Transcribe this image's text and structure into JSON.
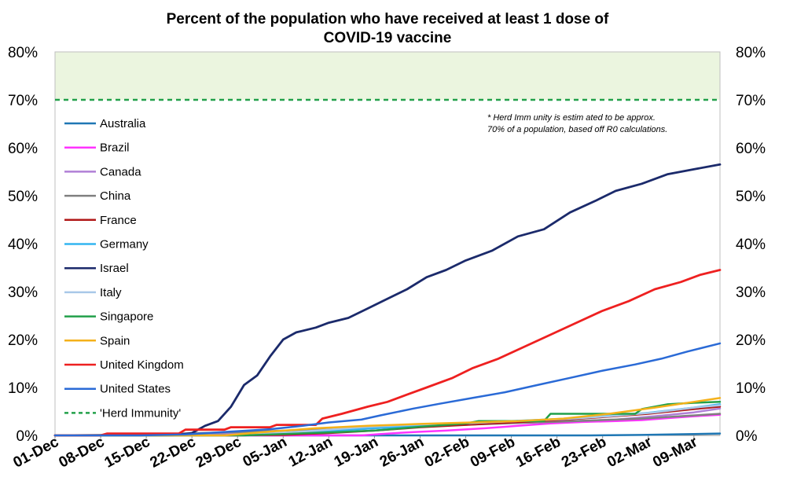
{
  "chart_data": {
    "type": "line",
    "title_lines": [
      "Percent of the population who have received at least 1 dose of",
      "COVID-19 vaccine"
    ],
    "xlabel": "",
    "ylabel": "",
    "ylim": [
      0,
      80
    ],
    "y_ticks": [
      "0%",
      "10%",
      "20%",
      "30%",
      "40%",
      "50%",
      "60%",
      "70%",
      "80%"
    ],
    "x_range": [
      "2020-12-01",
      "2021-03-13"
    ],
    "x_ticks": [
      {
        "date": "2020-12-01",
        "label": "01-Dec"
      },
      {
        "date": "2020-12-08",
        "label": "08-Dec"
      },
      {
        "date": "2020-12-15",
        "label": "15-Dec"
      },
      {
        "date": "2020-12-22",
        "label": "22-Dec"
      },
      {
        "date": "2020-12-29",
        "label": "29-Dec"
      },
      {
        "date": "2021-01-05",
        "label": "05-Jan"
      },
      {
        "date": "2021-01-12",
        "label": "12-Jan"
      },
      {
        "date": "2021-01-19",
        "label": "19-Jan"
      },
      {
        "date": "2021-01-26",
        "label": "26-Jan"
      },
      {
        "date": "2021-02-02",
        "label": "02-Feb"
      },
      {
        "date": "2021-02-09",
        "label": "09-Feb"
      },
      {
        "date": "2021-02-16",
        "label": "16-Feb"
      },
      {
        "date": "2021-02-23",
        "label": "23-Feb"
      },
      {
        "date": "2021-03-02",
        "label": "02-Mar"
      },
      {
        "date": "2021-03-09",
        "label": "09-Mar"
      }
    ],
    "herd_band_color": "#ebf5df",
    "legend_position": "left",
    "note_lines": [
      "* Herd Imm unity is estim ated to be approx.",
      "70% of a population, based off R0 calculations."
    ],
    "series": [
      {
        "name": "Australia",
        "color": "#1f77b4",
        "width": 2.5,
        "points": [
          [
            "2020-12-01",
            0
          ],
          [
            "2021-02-21",
            0
          ],
          [
            "2021-03-01",
            0.1
          ],
          [
            "2021-03-13",
            0.4
          ]
        ]
      },
      {
        "name": "Brazil",
        "color": "#ff33ff",
        "width": 2.5,
        "points": [
          [
            "2020-12-01",
            0
          ],
          [
            "2021-01-17",
            0
          ],
          [
            "2021-01-20",
            0.3
          ],
          [
            "2021-01-25",
            0.7
          ],
          [
            "2021-01-30",
            1.0
          ],
          [
            "2021-02-05",
            1.5
          ],
          [
            "2021-02-10",
            2.0
          ],
          [
            "2021-02-15",
            2.5
          ],
          [
            "2021-02-20",
            2.8
          ],
          [
            "2021-02-25",
            3.0
          ],
          [
            "2021-03-01",
            3.2
          ],
          [
            "2021-03-05",
            3.6
          ],
          [
            "2021-03-09",
            4.0
          ],
          [
            "2021-03-13",
            4.3
          ]
        ]
      },
      {
        "name": "Canada",
        "color": "#b07fd6",
        "width": 2.5,
        "points": [
          [
            "2020-12-01",
            0
          ],
          [
            "2020-12-14",
            0
          ],
          [
            "2020-12-25",
            0.2
          ],
          [
            "2021-01-05",
            0.5
          ],
          [
            "2021-01-15",
            1.2
          ],
          [
            "2021-01-25",
            2.0
          ],
          [
            "2021-02-05",
            2.5
          ],
          [
            "2021-02-15",
            2.8
          ],
          [
            "2021-02-25",
            3.3
          ],
          [
            "2021-03-03",
            4.0
          ],
          [
            "2021-03-09",
            4.8
          ],
          [
            "2021-03-13",
            5.6
          ]
        ]
      },
      {
        "name": "China",
        "color": "#808080",
        "width": 2.5,
        "points": [
          [
            "2020-12-01",
            0
          ],
          [
            "2020-12-15",
            0.2
          ],
          [
            "2021-01-01",
            0.8
          ],
          [
            "2021-01-15",
            1.5
          ],
          [
            "2021-02-01",
            2.2
          ],
          [
            "2021-02-15",
            2.8
          ],
          [
            "2021-03-01",
            3.5
          ],
          [
            "2021-03-13",
            4.5
          ]
        ]
      },
      {
        "name": "France",
        "color": "#b01818",
        "width": 2.5,
        "points": [
          [
            "2020-12-01",
            0
          ],
          [
            "2020-12-27",
            0
          ],
          [
            "2021-01-05",
            0.1
          ],
          [
            "2021-01-12",
            0.5
          ],
          [
            "2021-01-19",
            1.0
          ],
          [
            "2021-01-26",
            1.7
          ],
          [
            "2021-02-02",
            2.2
          ],
          [
            "2021-02-09",
            2.7
          ],
          [
            "2021-02-16",
            3.2
          ],
          [
            "2021-02-23",
            3.8
          ],
          [
            "2021-03-02",
            4.5
          ],
          [
            "2021-03-09",
            5.5
          ],
          [
            "2021-03-13",
            6.0
          ]
        ]
      },
      {
        "name": "Germany",
        "color": "#33b5f0",
        "width": 2.5,
        "points": [
          [
            "2020-12-01",
            0
          ],
          [
            "2020-12-27",
            0
          ],
          [
            "2021-01-05",
            0.4
          ],
          [
            "2021-01-12",
            0.9
          ],
          [
            "2021-01-19",
            1.5
          ],
          [
            "2021-01-26",
            2.0
          ],
          [
            "2021-02-02",
            2.5
          ],
          [
            "2021-02-09",
            3.0
          ],
          [
            "2021-02-16",
            3.4
          ],
          [
            "2021-02-23",
            4.0
          ],
          [
            "2021-03-02",
            4.7
          ],
          [
            "2021-03-09",
            5.8
          ],
          [
            "2021-03-13",
            6.5
          ]
        ]
      },
      {
        "name": "Israel",
        "color": "#1b2a6b",
        "width": 2.8,
        "points": [
          [
            "2020-12-01",
            0
          ],
          [
            "2020-12-19",
            0
          ],
          [
            "2020-12-22",
            0.5
          ],
          [
            "2020-12-24",
            2.0
          ],
          [
            "2020-12-26",
            3.0
          ],
          [
            "2020-12-28",
            6.0
          ],
          [
            "2020-12-30",
            10.5
          ],
          [
            "2021-01-01",
            12.5
          ],
          [
            "2021-01-03",
            16.5
          ],
          [
            "2021-01-05",
            20.0
          ],
          [
            "2021-01-07",
            21.5
          ],
          [
            "2021-01-10",
            22.5
          ],
          [
            "2021-01-12",
            23.5
          ],
          [
            "2021-01-15",
            24.5
          ],
          [
            "2021-01-18",
            26.5
          ],
          [
            "2021-01-21",
            28.5
          ],
          [
            "2021-01-24",
            30.5
          ],
          [
            "2021-01-27",
            33.0
          ],
          [
            "2021-01-30",
            34.5
          ],
          [
            "2021-02-02",
            36.5
          ],
          [
            "2021-02-06",
            38.5
          ],
          [
            "2021-02-10",
            41.5
          ],
          [
            "2021-02-14",
            43.0
          ],
          [
            "2021-02-18",
            46.5
          ],
          [
            "2021-02-22",
            49.0
          ],
          [
            "2021-02-25",
            51.0
          ],
          [
            "2021-03-01",
            52.5
          ],
          [
            "2021-03-05",
            54.5
          ],
          [
            "2021-03-09",
            55.5
          ],
          [
            "2021-03-13",
            56.5
          ]
        ]
      },
      {
        "name": "Italy",
        "color": "#a8c8e8",
        "width": 2.5,
        "points": [
          [
            "2020-12-01",
            0
          ],
          [
            "2020-12-27",
            0
          ],
          [
            "2021-01-02",
            0.3
          ],
          [
            "2021-01-10",
            1.0
          ],
          [
            "2021-01-18",
            1.8
          ],
          [
            "2021-01-26",
            2.3
          ],
          [
            "2021-02-03",
            2.6
          ],
          [
            "2021-02-10",
            3.0
          ],
          [
            "2021-02-17",
            3.4
          ],
          [
            "2021-02-24",
            4.0
          ],
          [
            "2021-03-03",
            4.8
          ],
          [
            "2021-03-09",
            5.8
          ],
          [
            "2021-03-13",
            6.3
          ]
        ]
      },
      {
        "name": "Singapore",
        "color": "#22a04a",
        "width": 2.5,
        "points": [
          [
            "2020-12-01",
            0
          ],
          [
            "2020-12-30",
            0
          ],
          [
            "2021-01-05",
            0.3
          ],
          [
            "2021-01-12",
            0.6
          ],
          [
            "2021-01-19",
            1.0
          ],
          [
            "2021-01-26",
            1.8
          ],
          [
            "2021-02-02",
            2.5
          ],
          [
            "2021-02-04",
            3.0
          ],
          [
            "2021-02-14",
            3.0
          ],
          [
            "2021-02-15",
            4.5
          ],
          [
            "2021-02-28",
            4.5
          ],
          [
            "2021-03-01",
            5.5
          ],
          [
            "2021-03-05",
            6.5
          ],
          [
            "2021-03-09",
            6.8
          ],
          [
            "2021-03-13",
            7.0
          ]
        ]
      },
      {
        "name": "Spain",
        "color": "#f4b11a",
        "width": 2.5,
        "points": [
          [
            "2020-12-01",
            0
          ],
          [
            "2020-12-27",
            0
          ],
          [
            "2021-01-03",
            0.8
          ],
          [
            "2021-01-10",
            1.5
          ],
          [
            "2021-01-18",
            2.0
          ],
          [
            "2021-01-26",
            2.4
          ],
          [
            "2021-02-03",
            2.7
          ],
          [
            "2021-02-10",
            3.0
          ],
          [
            "2021-02-17",
            3.5
          ],
          [
            "2021-02-24",
            4.5
          ],
          [
            "2021-03-03",
            5.8
          ],
          [
            "2021-03-09",
            7.0
          ],
          [
            "2021-03-13",
            7.8
          ]
        ]
      },
      {
        "name": "United Kingdom",
        "color": "#ee2020",
        "width": 2.8,
        "points": [
          [
            "2020-12-01",
            0
          ],
          [
            "2020-12-08",
            0
          ],
          [
            "2020-12-09",
            0.4
          ],
          [
            "2020-12-20",
            0.4
          ],
          [
            "2020-12-21",
            1.2
          ],
          [
            "2020-12-27",
            1.2
          ],
          [
            "2020-12-28",
            1.7
          ],
          [
            "2021-01-03",
            1.7
          ],
          [
            "2021-01-04",
            2.2
          ],
          [
            "2021-01-10",
            2.2
          ],
          [
            "2021-01-11",
            3.5
          ],
          [
            "2021-01-14",
            4.5
          ],
          [
            "2021-01-18",
            6.0
          ],
          [
            "2021-01-21",
            7.0
          ],
          [
            "2021-01-24",
            8.5
          ],
          [
            "2021-01-27",
            10.0
          ],
          [
            "2021-01-31",
            12.0
          ],
          [
            "2021-02-03",
            14.0
          ],
          [
            "2021-02-07",
            16.0
          ],
          [
            "2021-02-11",
            18.5
          ],
          [
            "2021-02-15",
            21.0
          ],
          [
            "2021-02-19",
            23.5
          ],
          [
            "2021-02-23",
            26.0
          ],
          [
            "2021-02-27",
            28.0
          ],
          [
            "2021-03-03",
            30.5
          ],
          [
            "2021-03-07",
            32.0
          ],
          [
            "2021-03-10",
            33.5
          ],
          [
            "2021-03-13",
            34.5
          ]
        ]
      },
      {
        "name": "United States",
        "color": "#2a6ad6",
        "width": 2.5,
        "points": [
          [
            "2020-12-01",
            0
          ],
          [
            "2020-12-14",
            0
          ],
          [
            "2020-12-21",
            0.2
          ],
          [
            "2020-12-28",
            0.8
          ],
          [
            "2021-01-03",
            1.3
          ],
          [
            "2021-01-08",
            2.0
          ],
          [
            "2021-01-12",
            2.7
          ],
          [
            "2021-01-17",
            3.3
          ],
          [
            "2021-01-20",
            4.2
          ],
          [
            "2021-01-25",
            5.6
          ],
          [
            "2021-01-29",
            6.6
          ],
          [
            "2021-02-03",
            7.8
          ],
          [
            "2021-02-08",
            9.0
          ],
          [
            "2021-02-13",
            10.5
          ],
          [
            "2021-02-18",
            12.0
          ],
          [
            "2021-02-23",
            13.5
          ],
          [
            "2021-02-28",
            14.8
          ],
          [
            "2021-03-04",
            16.0
          ],
          [
            "2021-03-08",
            17.5
          ],
          [
            "2021-03-13",
            19.2
          ]
        ]
      }
    ],
    "herd_immunity": {
      "name": "'Herd Immunity'",
      "value": 70,
      "color": "#22a04a"
    }
  }
}
